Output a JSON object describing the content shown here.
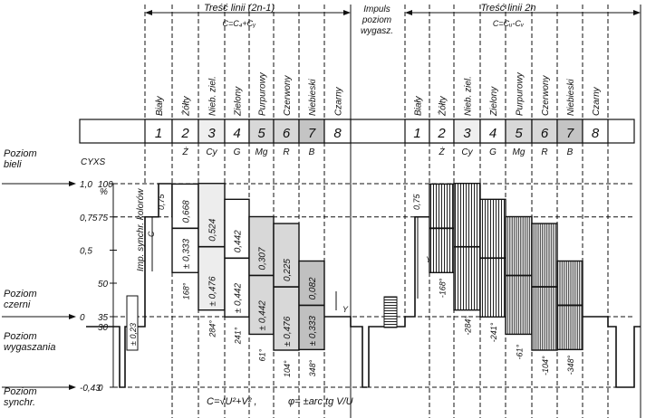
{
  "header": {
    "left_title": "Treść linii (2n-1)",
    "left_formula": "C=C₄+Cᵧ",
    "center_title_lines": [
      "Impuls",
      "poziom",
      "wygasz."
    ],
    "right_title": "Treść linii 2n",
    "right_formula": "C=Cᵤ-Cᵥ"
  },
  "colors": {
    "names": [
      "Biały",
      "Żółty",
      "Nieb. ziel.",
      "Zielony",
      "Purpurowy",
      "Czerwony",
      "Niebieski",
      "Czarny"
    ],
    "numbers": [
      "1",
      "2",
      "3",
      "4",
      "5",
      "6",
      "7",
      "8"
    ],
    "codes": [
      "Ż",
      "Cy",
      "G",
      "Mg",
      "R",
      "B"
    ],
    "cell_shades": [
      "#ffffff",
      "#ffffff",
      "#efefef",
      "#ffffff",
      "#d8d8d8",
      "#d8d8d8",
      "#c4c4c4",
      "#ffffff"
    ]
  },
  "left_axis": {
    "levels": [
      {
        "label": "Poziom",
        "label2": "bieli",
        "cyxs": "1,0",
        "pct": "100"
      },
      {
        "cyxs": "0,75",
        "pct": "75"
      },
      {
        "cyxs": "0,5",
        "pct": ""
      },
      {
        "cyxs": "",
        "pct": "50"
      },
      {
        "label": "Poziom",
        "label2": "czerni",
        "cyxs": "0",
        "pct": "35"
      },
      {
        "label": "Poziom",
        "label2": "wygaszania",
        "cyxs": "",
        "pct": "30"
      },
      {
        "label": "Poziom",
        "label2": "synchr.",
        "cyxs": "-0,43",
        "pct": "0"
      }
    ],
    "scale_title": "CYXS",
    "pct_unit": "%"
  },
  "left_values": {
    "burst_amp": "± 0,23",
    "sync_label": "Imp. synchr. kolorów",
    "ref_075": "0,75",
    "c_label": "C",
    "luma": [
      "0,668",
      "0,524",
      "0,442",
      "0,307",
      "0,225",
      "0,082"
    ],
    "chroma": [
      "± 0,333",
      "± 0,476",
      "± 0,442",
      "± 0,442",
      "± 0,476",
      "± 0,333"
    ],
    "phases": [
      "168°",
      "284°",
      "241°",
      "61°",
      "104°",
      "348°"
    ],
    "y_label": "Y"
  },
  "right_values": {
    "ref_075": "0,75",
    "y_label": "Y",
    "phases": [
      "-168°",
      "-284°",
      "-241°",
      "-61°",
      "-104°",
      "-348°"
    ]
  },
  "formulas": {
    "magnitude": "C=√U²+V²  ,",
    "phase": "φ= ±arc tg V/U"
  }
}
